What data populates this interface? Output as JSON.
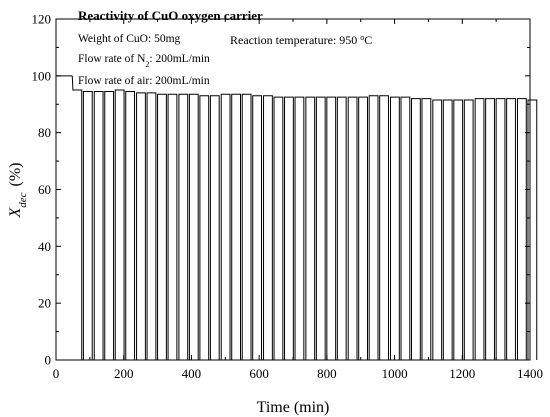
{
  "chart_data": {
    "type": "line",
    "title": "Reactivity of CuO oxygen carrier",
    "annotations": {
      "weight_prefix": "Weight of CuO: ",
      "weight_value": "50mg",
      "flow_n2_prefix": "Flow rate of N",
      "flow_n2_subscript": "2",
      "flow_n2_suffix": ": 200mL/min",
      "flow_air": "Flow rate of air: 200mL/min",
      "temperature_prefix": "Reaction temperature: 950 ",
      "temperature_degree": "o",
      "temperature_unit": "C"
    },
    "xlabel": "Time (min)",
    "ylabel_symbol": "X",
    "ylabel_subscript": "dec",
    "ylabel_unit": "(%)",
    "xlim": [
      0,
      1400
    ],
    "ylim": [
      0,
      120
    ],
    "x_ticks": [
      0,
      200,
      400,
      600,
      800,
      1000,
      1200,
      1400
    ],
    "y_ticks": [
      0,
      20,
      40,
      60,
      80,
      100,
      120
    ],
    "grid": false,
    "legend": "none",
    "series": [
      {
        "cycle_start_times": [
          50,
          81,
          113,
          144,
          175,
          206,
          238,
          269,
          300,
          331,
          363,
          394,
          425,
          456,
          488,
          519,
          550,
          581,
          613,
          644,
          675,
          706,
          738,
          769,
          800,
          831,
          863,
          894,
          925,
          956,
          988,
          1019,
          1050,
          1081,
          1113,
          1144,
          1175,
          1206,
          1238,
          1269,
          1300,
          1331,
          1363,
          1394
        ],
        "plateau_values": [
          95,
          94.5,
          94.5,
          94.5,
          95,
          94.5,
          94,
          94,
          93.5,
          93.5,
          93.5,
          93.5,
          93,
          93,
          93.5,
          93.5,
          93.5,
          93,
          93,
          92.5,
          92.5,
          92.5,
          92.5,
          92.5,
          92.5,
          92.5,
          92.5,
          92.5,
          93,
          93,
          92.5,
          92.5,
          92,
          92,
          91.5,
          91.5,
          91.5,
          91.5,
          92,
          92,
          92,
          92,
          92,
          91.5
        ],
        "initial_value": 100,
        "plateau_duration_min": 26
      }
    ]
  }
}
